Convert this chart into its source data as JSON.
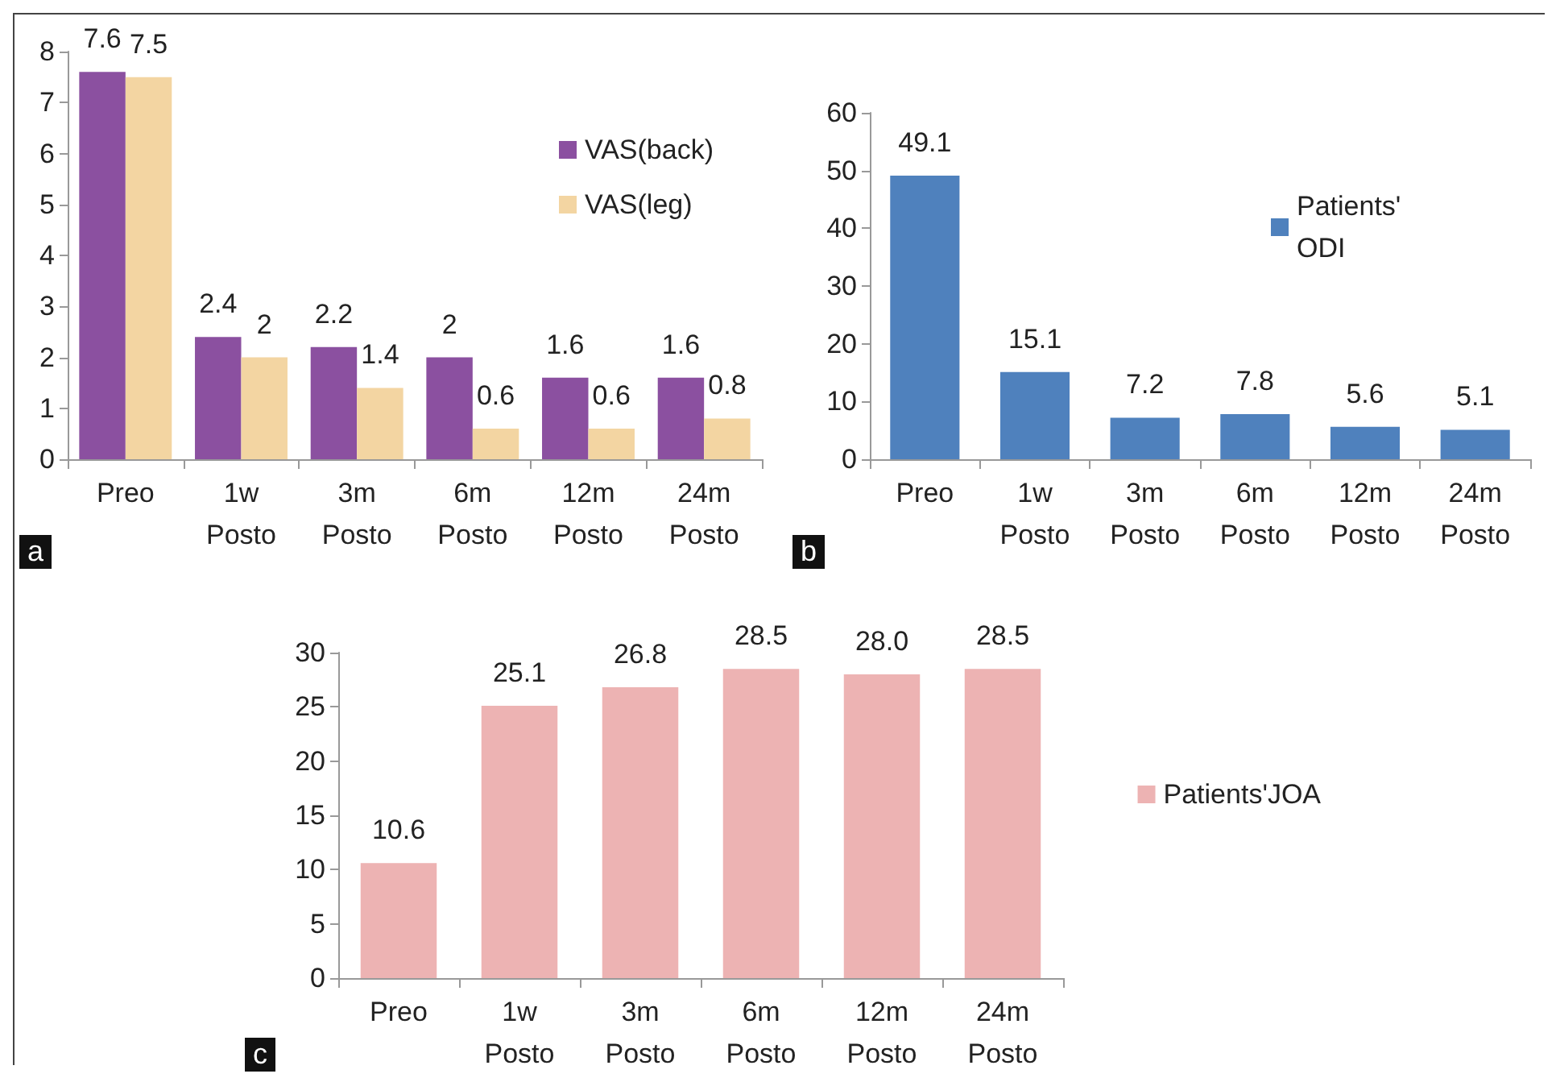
{
  "chart_data": [
    {
      "type": "bar",
      "categories": [
        "Preo",
        "1w Posto",
        "3m Posto",
        "6m Posto",
        "12m Posto",
        "24m Posto"
      ],
      "series": [
        {
          "name": "VAS(back)",
          "color": "#8b50a0",
          "values": [
            7.6,
            2.4,
            2.2,
            2,
            1.6,
            1.6
          ]
        },
        {
          "name": "VAS(leg)",
          "color": "#f3d5a2",
          "values": [
            7.5,
            2,
            1.4,
            0.6,
            0.6,
            0.8
          ]
        }
      ],
      "ylim": [
        0,
        8
      ],
      "yticks": [
        0,
        1,
        2,
        3,
        4,
        5,
        6,
        7,
        8
      ],
      "grid": false,
      "legend": "top right",
      "data_labels": true,
      "annotations": [
        "a"
      ]
    },
    {
      "type": "bar",
      "categories": [
        "Preo",
        "1w Posto",
        "3m Posto",
        "6m Posto",
        "12m Posto",
        "24m Posto"
      ],
      "series": [
        {
          "name": "Patients' ODI",
          "color": "#4f81bd",
          "values": [
            49.1,
            15.1,
            7.2,
            7.8,
            5.6,
            5.1
          ]
        }
      ],
      "ylim": [
        0,
        60
      ],
      "yticks": [
        0,
        10,
        20,
        30,
        40,
        50,
        60
      ],
      "grid": false,
      "legend": "top right",
      "data_labels": true,
      "annotations": [
        "b"
      ]
    },
    {
      "type": "bar",
      "categories": [
        "Preo",
        "1w Posto",
        "3m Posto",
        "6m Posto",
        "12m Posto",
        "24m Posto"
      ],
      "series": [
        {
          "name": "Patients'JOA",
          "color": "#edb3b3",
          "values": [
            10.6,
            25.1,
            26.8,
            28.5,
            28,
            28.5
          ],
          "value_labels": [
            "10.6",
            "25.1",
            "26.8",
            "28.5",
            "28.0",
            "28.5"
          ]
        }
      ],
      "ylim": [
        0,
        30
      ],
      "yticks": [
        0,
        5,
        10,
        15,
        20,
        25,
        30
      ],
      "grid": false,
      "legend": "right",
      "annotations": [
        "c"
      ]
    }
  ]
}
